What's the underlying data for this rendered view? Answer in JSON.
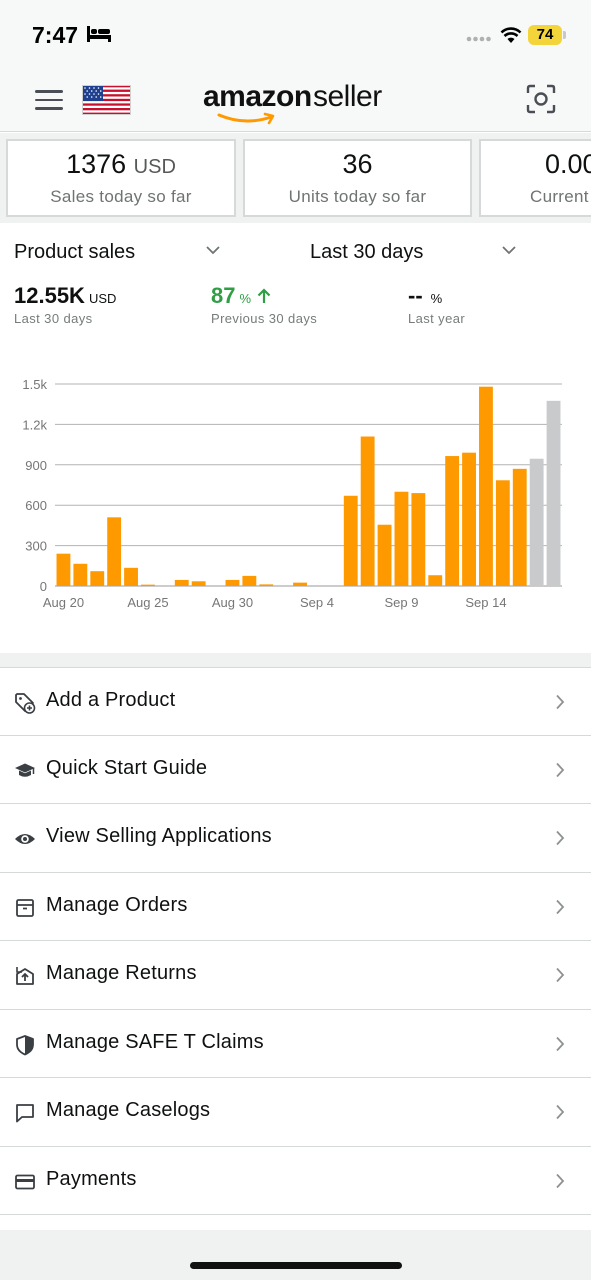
{
  "status_bar": {
    "time": "7:47",
    "battery": "74"
  },
  "header": {
    "brand_amazon": "amazon",
    "brand_seller": "seller"
  },
  "metrics": [
    {
      "value": "1376",
      "unit": "USD",
      "label": "Sales today so far"
    },
    {
      "value": "36",
      "unit": "",
      "label": "Units today so far"
    },
    {
      "value": "0.00",
      "unit": "",
      "label": "Current"
    }
  ],
  "sales_panel": {
    "metric_dropdown": "Product sales",
    "period_dropdown": "Last 30 days",
    "kpis": [
      {
        "value": "12.55K",
        "unit": "USD",
        "label": "Last 30 days"
      },
      {
        "value": "87",
        "unit": "%",
        "label": "Previous 30 days",
        "trend": "up"
      },
      {
        "value": "--",
        "unit": "%",
        "label": "Last year"
      }
    ]
  },
  "chart_data": {
    "type": "bar",
    "ylim": [
      0,
      1500
    ],
    "yticks": [
      "0",
      "300",
      "600",
      "900",
      "1.2k",
      "1.5k"
    ],
    "xticks": [
      "Aug 20",
      "Aug 25",
      "Aug 30",
      "Sep 4",
      "Sep 9",
      "Sep 14"
    ],
    "colors": {
      "actual": "#ff9900",
      "partial": "#c9cacc"
    },
    "values": [
      240,
      165,
      110,
      510,
      135,
      10,
      0,
      45,
      35,
      0,
      45,
      75,
      12,
      0,
      25,
      0,
      0,
      670,
      1110,
      455,
      700,
      690,
      80,
      965,
      990,
      1480,
      785,
      870,
      945,
      1375
    ],
    "partial_from_index": 28
  },
  "menu": [
    {
      "label": "Add a Product",
      "icon": "add-tag-icon"
    },
    {
      "label": "Quick Start Guide",
      "icon": "graduation-cap-icon"
    },
    {
      "label": "View Selling Applications",
      "icon": "eye-icon"
    },
    {
      "label": "Manage Orders",
      "icon": "box-icon"
    },
    {
      "label": "Manage Returns",
      "icon": "return-box-icon"
    },
    {
      "label": "Manage SAFE T Claims",
      "icon": "shield-icon"
    },
    {
      "label": "Manage Caselogs",
      "icon": "chat-bubble-icon"
    },
    {
      "label": "Payments",
      "icon": "credit-card-icon"
    }
  ]
}
